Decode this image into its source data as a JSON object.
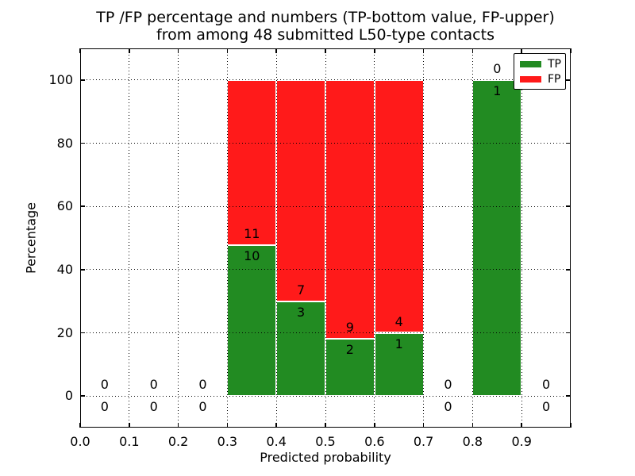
{
  "figure": {
    "title_line1": "TP /FP percentage and numbers (TP-bottom value, FP-upper)",
    "title_line2": "from among 48 submitted L50-type contacts"
  },
  "axes": {
    "xlabel": "Predicted probability",
    "ylabel": "Percentage",
    "xtick_labels": [
      "0.0",
      "0.1",
      "0.2",
      "0.3",
      "0.4",
      "0.5",
      "0.6",
      "0.7",
      "0.8",
      "0.9"
    ],
    "ytick_labels": [
      "0",
      "20",
      "40",
      "60",
      "80",
      "100"
    ],
    "xlim": [
      0.0,
      1.0
    ],
    "ylim": [
      -10,
      110
    ],
    "grid_style": "dotted"
  },
  "legend": {
    "position": "upper right",
    "items": [
      {
        "label": "TP",
        "color": "#228B22"
      },
      {
        "label": "FP",
        "color": "#FF1A1A"
      }
    ]
  },
  "chart_data": {
    "type": "bar",
    "stacked": true,
    "title": "TP /FP percentage and numbers (TP-bottom value, FP-upper) from among 48 submitted L50-type contacts",
    "xlabel": "Predicted probability",
    "ylabel": "Percentage",
    "total_submitted": 48,
    "bar_edge_color": "#FFFFFF",
    "x_bin_edges": [
      0.0,
      0.1,
      0.2,
      0.3,
      0.4,
      0.5,
      0.6,
      0.7,
      0.8,
      0.9,
      1.0
    ],
    "x_bin_centers": [
      0.05,
      0.15,
      0.25,
      0.35,
      0.45,
      0.55,
      0.65,
      0.75,
      0.85,
      0.95
    ],
    "series": [
      {
        "name": "TP",
        "color": "#228B22",
        "counts": [
          0,
          0,
          0,
          10,
          3,
          2,
          1,
          0,
          1,
          0
        ],
        "percent": [
          0,
          0,
          0,
          47.62,
          30.0,
          18.18,
          20.0,
          0,
          100.0,
          0
        ]
      },
      {
        "name": "FP",
        "color": "#FF1A1A",
        "counts": [
          0,
          0,
          0,
          11,
          7,
          9,
          4,
          0,
          0,
          0
        ],
        "percent": [
          0,
          0,
          0,
          52.38,
          70.0,
          81.82,
          80.0,
          0,
          0,
          0
        ]
      }
    ]
  }
}
